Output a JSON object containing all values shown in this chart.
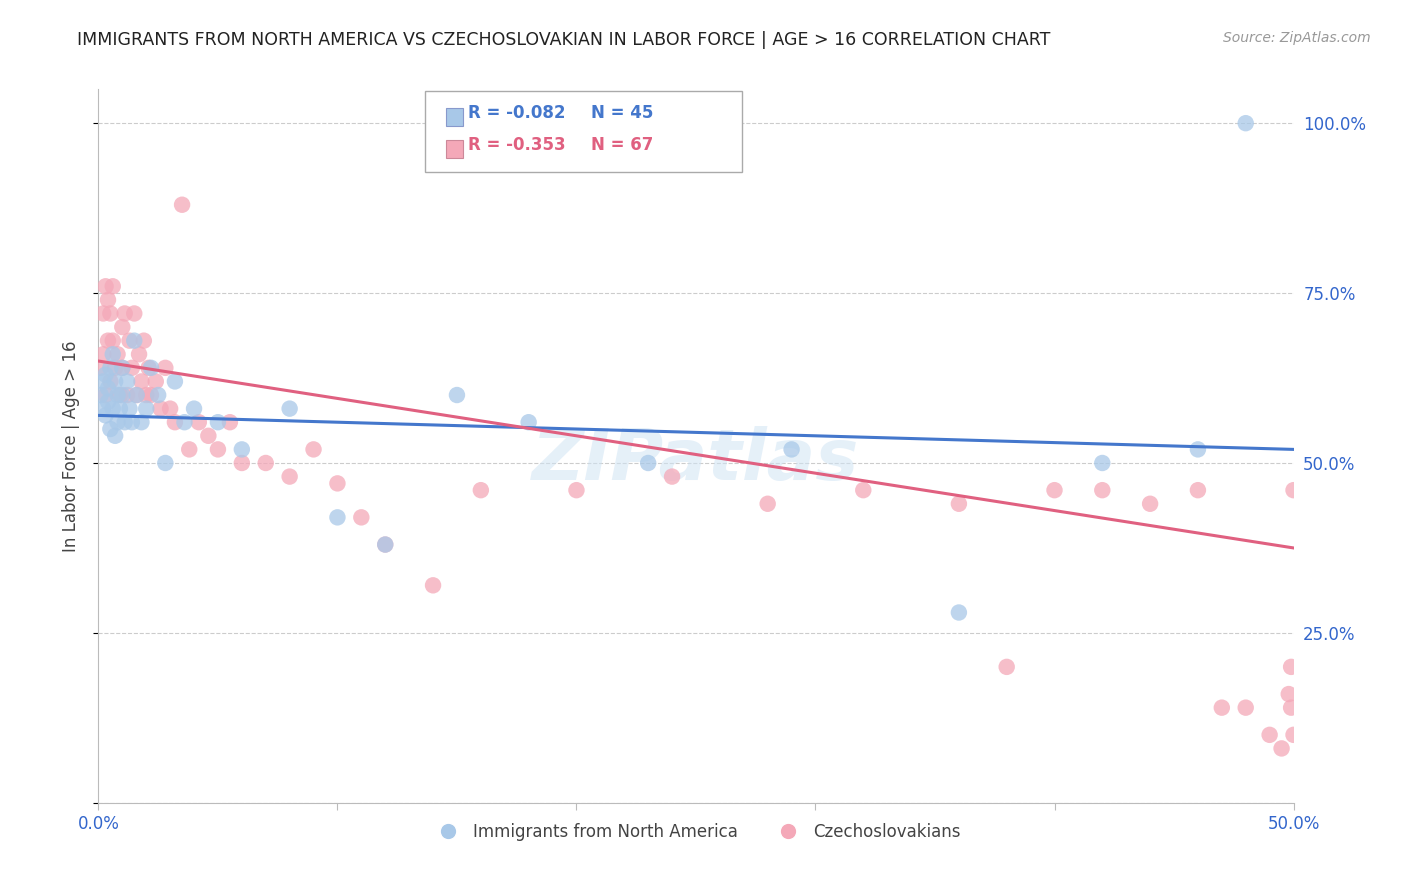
{
  "title": "IMMIGRANTS FROM NORTH AMERICA VS CZECHOSLOVAKIAN IN LABOR FORCE | AGE > 16 CORRELATION CHART",
  "source": "Source: ZipAtlas.com",
  "ylabel": "In Labor Force | Age > 16",
  "xlim": [
    0.0,
    0.5
  ],
  "ylim": [
    0.0,
    1.05
  ],
  "legend_blue_r": "-0.082",
  "legend_blue_n": "45",
  "legend_pink_r": "-0.353",
  "legend_pink_n": "67",
  "blue_color": "#a8c8e8",
  "pink_color": "#f4a8b8",
  "blue_line_color": "#4477cc",
  "pink_line_color": "#e06080",
  "watermark": "ZIPatlas",
  "blue_x": [
    0.001,
    0.002,
    0.002,
    0.003,
    0.003,
    0.004,
    0.004,
    0.005,
    0.005,
    0.006,
    0.006,
    0.007,
    0.007,
    0.008,
    0.008,
    0.009,
    0.01,
    0.01,
    0.011,
    0.012,
    0.013,
    0.014,
    0.015,
    0.016,
    0.018,
    0.02,
    0.022,
    0.025,
    0.028,
    0.032,
    0.036,
    0.04,
    0.05,
    0.06,
    0.08,
    0.1,
    0.12,
    0.15,
    0.18,
    0.23,
    0.29,
    0.36,
    0.42,
    0.46,
    0.48
  ],
  "blue_y": [
    0.6,
    0.58,
    0.62,
    0.57,
    0.63,
    0.59,
    0.61,
    0.55,
    0.64,
    0.58,
    0.66,
    0.54,
    0.62,
    0.6,
    0.56,
    0.58,
    0.64,
    0.6,
    0.56,
    0.62,
    0.58,
    0.56,
    0.68,
    0.6,
    0.56,
    0.58,
    0.64,
    0.6,
    0.5,
    0.62,
    0.56,
    0.58,
    0.56,
    0.52,
    0.58,
    0.42,
    0.38,
    0.6,
    0.56,
    0.5,
    0.52,
    0.28,
    0.5,
    0.52,
    1.0
  ],
  "pink_x": [
    0.001,
    0.002,
    0.002,
    0.003,
    0.003,
    0.004,
    0.004,
    0.005,
    0.005,
    0.006,
    0.006,
    0.007,
    0.008,
    0.009,
    0.01,
    0.01,
    0.011,
    0.012,
    0.013,
    0.014,
    0.015,
    0.016,
    0.017,
    0.018,
    0.019,
    0.02,
    0.021,
    0.022,
    0.024,
    0.026,
    0.028,
    0.03,
    0.032,
    0.035,
    0.038,
    0.042,
    0.046,
    0.05,
    0.055,
    0.06,
    0.07,
    0.08,
    0.09,
    0.1,
    0.11,
    0.12,
    0.14,
    0.16,
    0.2,
    0.24,
    0.28,
    0.32,
    0.36,
    0.38,
    0.4,
    0.42,
    0.44,
    0.46,
    0.47,
    0.48,
    0.49,
    0.495,
    0.498,
    0.499,
    0.499,
    0.5,
    0.5
  ],
  "pink_y": [
    0.64,
    0.66,
    0.72,
    0.6,
    0.76,
    0.68,
    0.74,
    0.72,
    0.62,
    0.68,
    0.76,
    0.64,
    0.66,
    0.6,
    0.7,
    0.64,
    0.72,
    0.6,
    0.68,
    0.64,
    0.72,
    0.6,
    0.66,
    0.62,
    0.68,
    0.6,
    0.64,
    0.6,
    0.62,
    0.58,
    0.64,
    0.58,
    0.56,
    0.88,
    0.52,
    0.56,
    0.54,
    0.52,
    0.56,
    0.5,
    0.5,
    0.48,
    0.52,
    0.47,
    0.42,
    0.38,
    0.32,
    0.46,
    0.46,
    0.48,
    0.44,
    0.46,
    0.44,
    0.2,
    0.46,
    0.46,
    0.44,
    0.46,
    0.14,
    0.14,
    0.1,
    0.08,
    0.16,
    0.2,
    0.14,
    0.1,
    0.46
  ]
}
